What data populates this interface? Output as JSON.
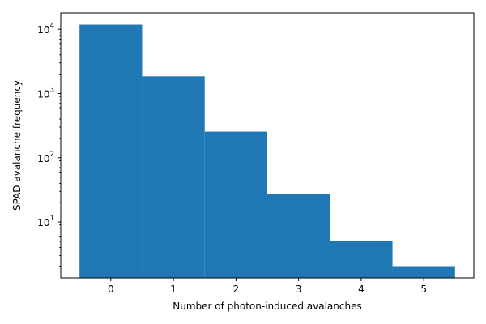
{
  "chart_data": {
    "type": "bar",
    "categories": [
      "0",
      "1",
      "2",
      "3",
      "4",
      "5"
    ],
    "x": [
      0,
      1,
      2,
      3,
      4,
      5
    ],
    "values": [
      11800,
      1850,
      255,
      27,
      5,
      2
    ],
    "xlabel": "Number of photon-induced avalanches",
    "ylabel": "SPAD avalanche frequency",
    "xlim": [
      -0.8,
      5.8
    ],
    "ylim": [
      1.35,
      18000
    ],
    "yscale": "log",
    "x_ticks": [
      "0",
      "1",
      "2",
      "3",
      "4",
      "5"
    ],
    "y_ticks": [
      {
        "base": "10",
        "exp": "1",
        "value": 10
      },
      {
        "base": "10",
        "exp": "2",
        "value": 100
      },
      {
        "base": "10",
        "exp": "3",
        "value": 1000
      },
      {
        "base": "10",
        "exp": "4",
        "value": 10000
      }
    ],
    "bar_color": "#1f77b4",
    "grid": false,
    "legend": "none"
  }
}
